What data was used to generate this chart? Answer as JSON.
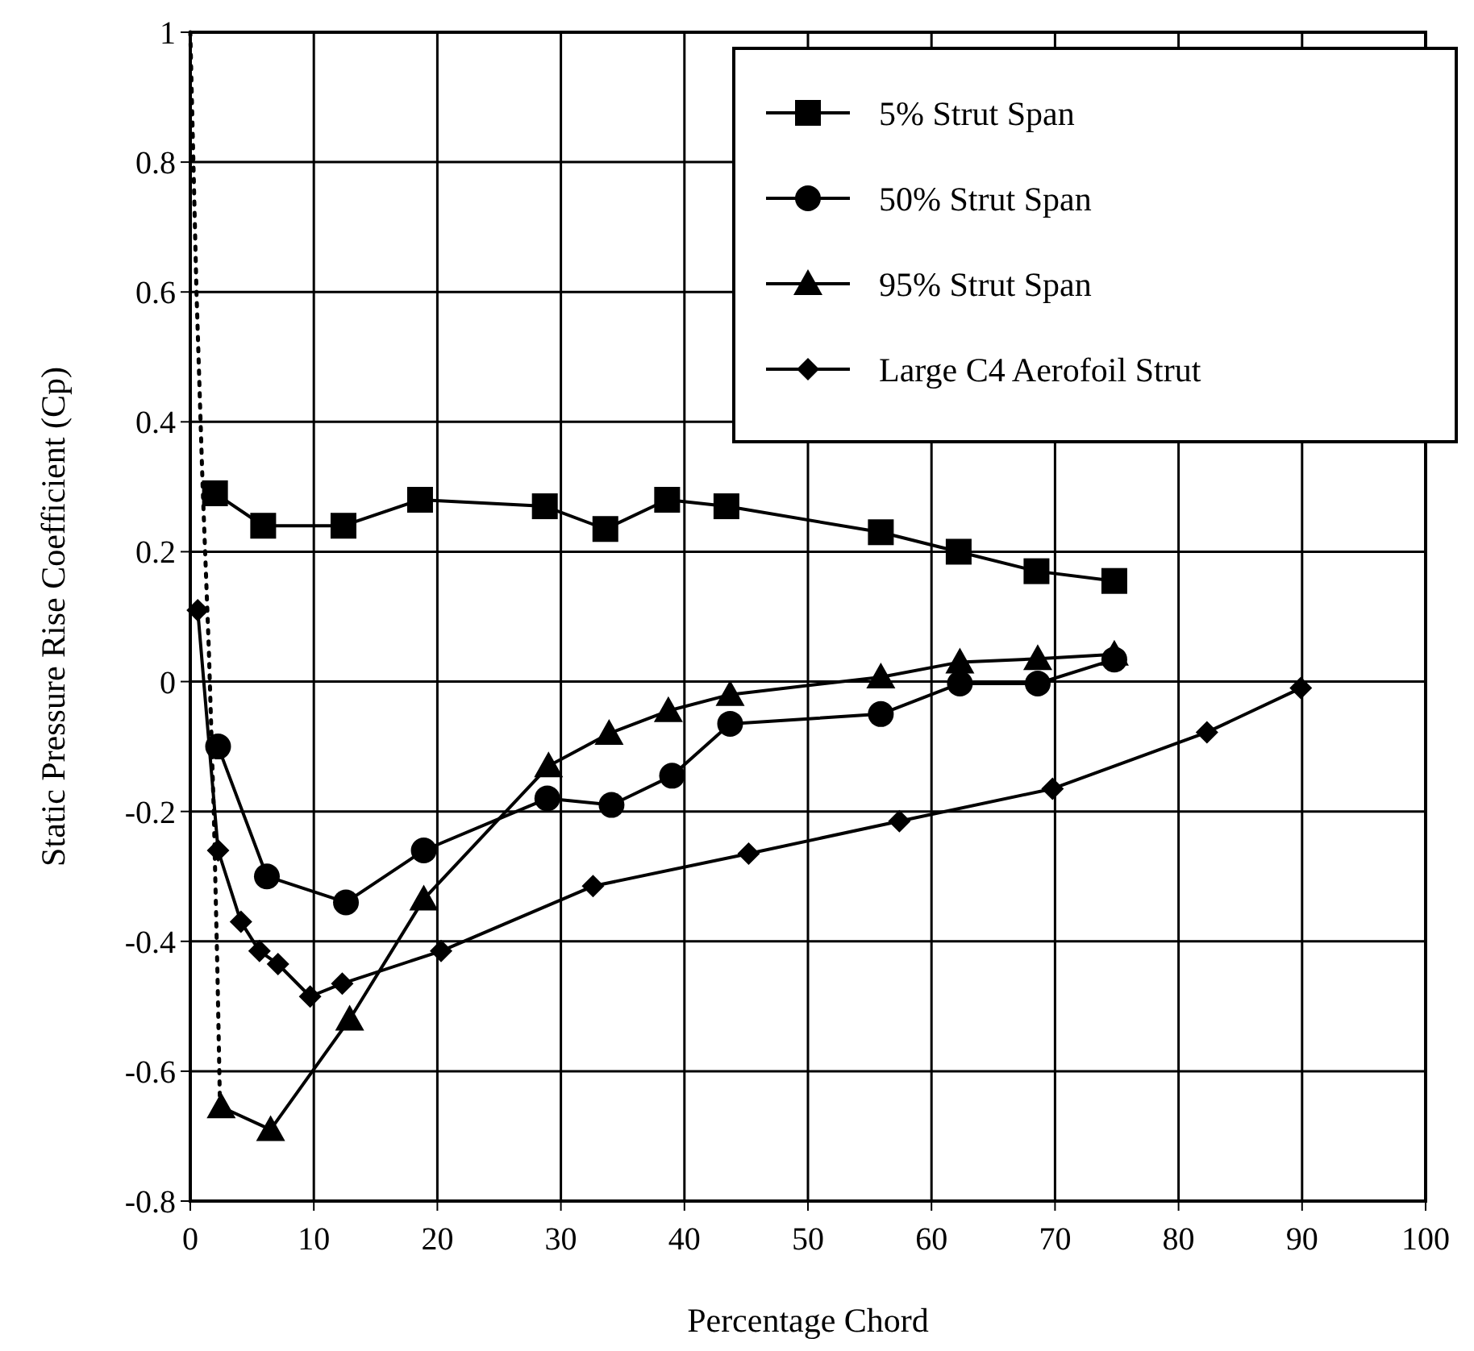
{
  "chart_data": {
    "type": "line",
    "xlabel": "Percentage Chord",
    "ylabel": "Static Pressure Rise Coefficient (Cp)",
    "xlim": [
      0,
      100
    ],
    "xticks": [
      0,
      10,
      20,
      30,
      40,
      50,
      60,
      70,
      80,
      90,
      100
    ],
    "ylim": [
      -0.8,
      1
    ],
    "yticks": [
      -0.8,
      -0.6,
      -0.4,
      -0.2,
      0,
      0.2,
      0.4,
      0.6,
      0.8,
      1
    ],
    "grid": true,
    "legend": "top right",
    "series": [
      {
        "name": "5% Strut Span",
        "color": "#000000",
        "marker": "square",
        "x": [
          2.0,
          5.9,
          12.4,
          18.6,
          28.7,
          33.6,
          38.6,
          43.4,
          55.9,
          62.2,
          68.5,
          74.8
        ],
        "values": [
          0.29,
          0.24,
          0.24,
          0.28,
          0.27,
          0.235,
          0.28,
          0.27,
          0.23,
          0.2,
          0.17,
          0.155
        ]
      },
      {
        "name": "50% Strut Span",
        "color": "#000000",
        "marker": "circle",
        "x": [
          2.25,
          6.2,
          12.6,
          18.9,
          28.9,
          34.1,
          39.0,
          43.7,
          55.9,
          62.3,
          68.6,
          74.8
        ],
        "values": [
          -0.1,
          -0.3,
          -0.34,
          -0.26,
          -0.18,
          -0.19,
          -0.145,
          -0.065,
          -0.05,
          -0.003,
          -0.003,
          0.034
        ]
      },
      {
        "name": "95% Strut Span",
        "color": "#000000",
        "marker": "triangle",
        "x": [
          2.5,
          6.5,
          12.9,
          18.9,
          29.0,
          33.9,
          38.7,
          43.7,
          55.9,
          62.3,
          68.6,
          74.8
        ],
        "values": [
          -0.655,
          -0.69,
          -0.52,
          -0.335,
          -0.13,
          -0.08,
          -0.045,
          -0.02,
          0.007,
          0.03,
          0.035,
          0.042
        ]
      },
      {
        "name": "Large C4 Aerofoil Strut",
        "color": "#000000",
        "marker": "diamond",
        "x": [
          0.6,
          2.25,
          4.1,
          5.6,
          7.1,
          9.7,
          12.3,
          20.3,
          32.6,
          45.2,
          57.4,
          69.8,
          82.3,
          89.9
        ],
        "values": [
          0.11,
          -0.26,
          -0.37,
          -0.415,
          -0.435,
          -0.485,
          -0.465,
          -0.415,
          -0.315,
          -0.265,
          -0.215,
          -0.165,
          -0.078,
          -0.01
        ]
      },
      {
        "color": "#000000",
        "marker": "none",
        "line_style": "dotted",
        "x": [
          0,
          0.5,
          1.0,
          1.5,
          1.9,
          2.2,
          2.4
        ],
        "values": [
          1,
          0.6,
          0.3,
          0.05,
          -0.2,
          -0.45,
          -0.65
        ]
      }
    ]
  }
}
